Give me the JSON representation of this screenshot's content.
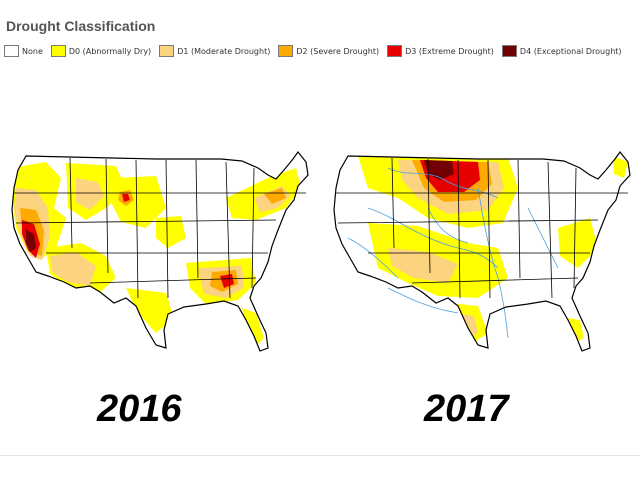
{
  "legend": {
    "title": "Drought Classification",
    "items": [
      {
        "label": "None",
        "color": "#ffffff"
      },
      {
        "label": "D0 (Abnormally Dry)",
        "color": "#ffff00"
      },
      {
        "label": "D1 (Moderate Drought)",
        "color": "#fcd37f"
      },
      {
        "label": "D2 (Severe Drought)",
        "color": "#ffaa00"
      },
      {
        "label": "D3 (Extreme Drought)",
        "color": "#e60000"
      },
      {
        "label": "D4 (Exceptional Drought)",
        "color": "#730000"
      }
    ]
  },
  "maps": [
    {
      "year": "2016",
      "show_rivers": false
    },
    {
      "year": "2017",
      "show_rivers": true
    }
  ],
  "colors": {
    "state_border": "#000000",
    "river": "#4aa3df"
  }
}
